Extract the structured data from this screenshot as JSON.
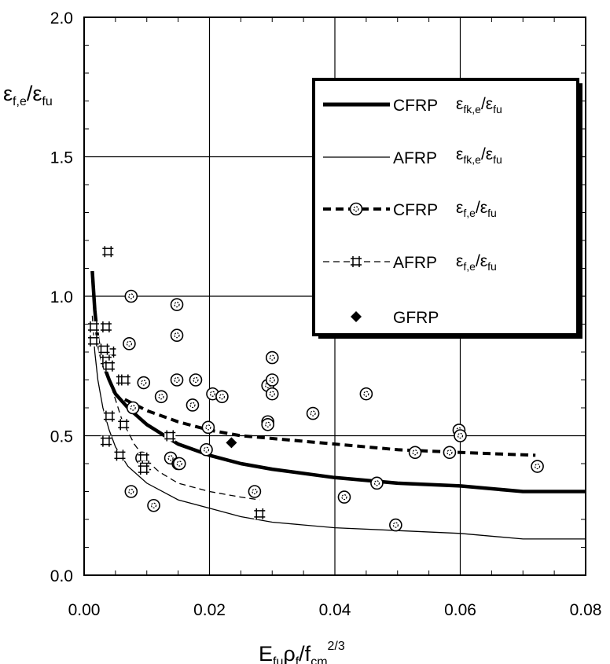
{
  "chart_data": {
    "type": "scatter",
    "xlabel": {
      "main": "E",
      "sub1": "fu",
      "mid": "ρ",
      "sub2": "f",
      "mid2": "/f",
      "sub3": "cm",
      "sup": "2/3"
    },
    "ylabel": {
      "main": "ε",
      "sub1": "f,e",
      "mid": "/ε",
      "sub2": "fu"
    },
    "xlim": [
      0,
      0.08
    ],
    "ylim": [
      0,
      2.0
    ],
    "x_ticks": [
      "0.00",
      "0.02",
      "0.04",
      "0.06",
      "0.08"
    ],
    "y_ticks": [
      "0.0",
      "0.5",
      "1.0",
      "1.5",
      "2.0"
    ],
    "grid": true,
    "legend_position": "upper-right",
    "series": [
      {
        "name": "CFRP",
        "label_main": "ε",
        "label_sub1": "fk,e",
        "label_mid": "/ε",
        "label_sub2": "fu",
        "style": "thick-solid",
        "x": [
          0.0013,
          0.0017,
          0.0022,
          0.003,
          0.004,
          0.005,
          0.007,
          0.01,
          0.015,
          0.02,
          0.025,
          0.03,
          0.04,
          0.05,
          0.06,
          0.07,
          0.08
        ],
        "y": [
          1.09,
          0.95,
          0.84,
          0.76,
          0.7,
          0.65,
          0.6,
          0.54,
          0.47,
          0.43,
          0.4,
          0.38,
          0.35,
          0.33,
          0.32,
          0.3,
          0.3
        ]
      },
      {
        "name": "AFRP",
        "label_main": "ε",
        "label_sub1": "fk,e",
        "label_mid": "/ε",
        "label_sub2": "fu",
        "style": "thin-solid",
        "x": [
          0.0013,
          0.0017,
          0.0022,
          0.003,
          0.004,
          0.005,
          0.007,
          0.01,
          0.015,
          0.02,
          0.025,
          0.03,
          0.04,
          0.05,
          0.06,
          0.07,
          0.08
        ],
        "y": [
          0.93,
          0.8,
          0.7,
          0.6,
          0.52,
          0.46,
          0.39,
          0.33,
          0.27,
          0.24,
          0.21,
          0.19,
          0.17,
          0.16,
          0.15,
          0.13,
          0.13
        ]
      },
      {
        "name": "CFRP",
        "label_main": "ε",
        "label_sub1": "f,e",
        "label_mid": "/ε",
        "label_sub2": "fu",
        "style": "thick-dashed-circles",
        "trend_x": [
          0.0065,
          0.01,
          0.015,
          0.02,
          0.025,
          0.03,
          0.04,
          0.05,
          0.06,
          0.072
        ],
        "trend_y": [
          0.63,
          0.59,
          0.55,
          0.52,
          0.5,
          0.49,
          0.47,
          0.45,
          0.44,
          0.43
        ],
        "points_x": [
          0.0075,
          0.0095,
          0.0072,
          0.0078,
          0.0092,
          0.0075,
          0.0111,
          0.0123,
          0.0138,
          0.0148,
          0.0148,
          0.0148,
          0.015,
          0.0152,
          0.0173,
          0.0178,
          0.0195,
          0.0198,
          0.0205,
          0.022,
          0.0272,
          0.0293,
          0.0293,
          0.0293,
          0.03,
          0.03,
          0.03,
          0.0365,
          0.0415,
          0.045,
          0.0467,
          0.0497,
          0.0528,
          0.0598,
          0.06,
          0.0583,
          0.0723
        ],
        "points_y": [
          1.0,
          0.69,
          0.83,
          0.6,
          0.42,
          0.3,
          0.25,
          0.64,
          0.42,
          0.97,
          0.86,
          0.7,
          0.4,
          0.4,
          0.61,
          0.7,
          0.45,
          0.53,
          0.65,
          0.64,
          0.3,
          0.68,
          0.55,
          0.54,
          0.78,
          0.7,
          0.65,
          0.58,
          0.28,
          0.65,
          0.33,
          0.18,
          0.44,
          0.52,
          0.5,
          0.44,
          0.39
        ]
      },
      {
        "name": "AFRP",
        "label_main": "ε",
        "label_sub1": "f,e",
        "label_mid": "/ε",
        "label_sub2": "fu",
        "style": "thin-dashed-hash",
        "trend_x": [
          0.002,
          0.004,
          0.006,
          0.008,
          0.01,
          0.012,
          0.015,
          0.02,
          0.025,
          0.028
        ],
        "trend_y": [
          0.85,
          0.7,
          0.56,
          0.47,
          0.41,
          0.37,
          0.33,
          0.3,
          0.28,
          0.27
        ],
        "points_x": [
          0.0038,
          0.0015,
          0.0015,
          0.0035,
          0.0042,
          0.0032,
          0.0035,
          0.004,
          0.006,
          0.0065,
          0.004,
          0.0035,
          0.0063,
          0.0057,
          0.0095,
          0.0098,
          0.0095,
          0.0137,
          0.028
        ],
        "points_y": [
          1.16,
          0.89,
          0.84,
          0.89,
          0.8,
          0.81,
          0.77,
          0.75,
          0.7,
          0.7,
          0.57,
          0.48,
          0.54,
          0.43,
          0.42,
          0.39,
          0.38,
          0.5,
          0.22
        ]
      },
      {
        "name": "GFRP",
        "style": "diamond",
        "points_x": [
          0.0235
        ],
        "points_y": [
          0.475
        ]
      }
    ],
    "colors": {
      "ink": "#000000",
      "background": "#ffffff"
    }
  }
}
